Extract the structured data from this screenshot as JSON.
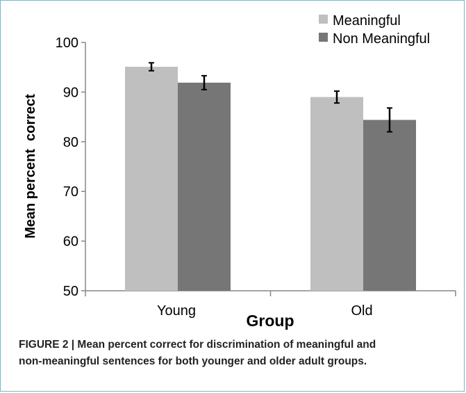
{
  "caption": {
    "line1": "FIGURE 2 | Mean percent correct for discrimination of meaningful and",
    "line2": "non-meaningful sentences for both younger and older adult groups."
  },
  "chart_data": {
    "type": "bar",
    "xlabel": "Group",
    "ylabel": "Mean percent  correct",
    "categories": [
      "Young",
      "Old"
    ],
    "ylim": [
      50,
      100
    ],
    "yticks": [
      50,
      60,
      70,
      80,
      90,
      100
    ],
    "grid": false,
    "legend_position": "top-right",
    "series": [
      {
        "name": "Meaningful",
        "values": [
          95.1,
          89.0
        ],
        "error": [
          0.8,
          1.2
        ],
        "color": "#bfbfbf"
      },
      {
        "name": "Non Meaningful",
        "values": [
          91.9,
          84.4
        ],
        "error": [
          1.4,
          2.4
        ],
        "color": "#767676"
      }
    ]
  }
}
